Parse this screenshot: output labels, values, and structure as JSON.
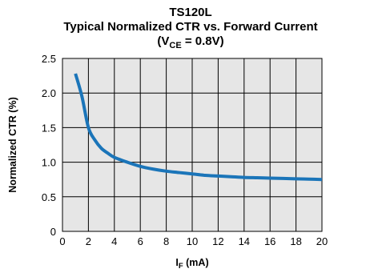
{
  "chart_data": {
    "type": "line",
    "title": "TS120L",
    "subtitle": "Typical Normalized CTR vs. Forward Current",
    "condition": {
      "prefix": "(V",
      "subscript": "CE",
      "suffix": " = 0.8V)"
    },
    "xlabel": {
      "main": "I",
      "subscript": "F",
      "suffix": " (mA)"
    },
    "ylabel": "Normalized CTR (%)",
    "xlim": [
      0,
      20
    ],
    "ylim": [
      0,
      2.5
    ],
    "x_ticks": [
      "0",
      "2",
      "4",
      "6",
      "8",
      "10",
      "12",
      "14",
      "16",
      "18",
      "20"
    ],
    "y_ticks": [
      "0",
      "0.5",
      "1.0",
      "1.5",
      "2.0",
      "2.5"
    ],
    "grid": true,
    "colors": {
      "line": "#1b75b9",
      "plot_background": "#e6e6e6",
      "grid": "#000000"
    },
    "series": [
      {
        "x": [
          1,
          1.5,
          2,
          2.5,
          3,
          3.5,
          4,
          5,
          6,
          7,
          8,
          9,
          10,
          11,
          12,
          13,
          14,
          15,
          16,
          17,
          18,
          19,
          20
        ],
        "values": [
          2.28,
          1.95,
          1.5,
          1.32,
          1.2,
          1.13,
          1.07,
          1.0,
          0.94,
          0.9,
          0.87,
          0.85,
          0.83,
          0.81,
          0.8,
          0.79,
          0.78,
          0.775,
          0.77,
          0.765,
          0.76,
          0.755,
          0.75
        ]
      }
    ]
  }
}
